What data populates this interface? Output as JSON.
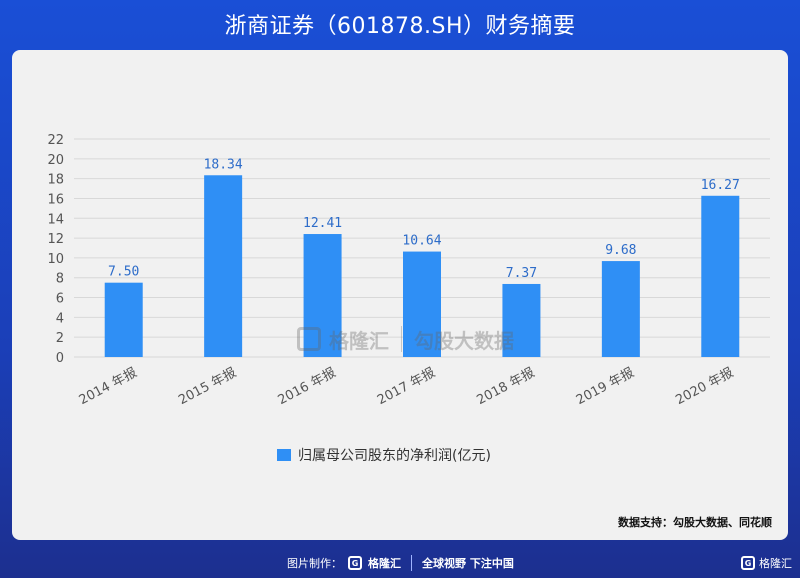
{
  "title": "浙商证券（601878.SH）财务摘要",
  "chart_data": {
    "type": "bar",
    "categories": [
      "2014 年报",
      "2015 年报",
      "2016 年报",
      "2017 年报",
      "2018 年报",
      "2019 年报",
      "2020 年报"
    ],
    "series": [
      {
        "name": "归属母公司股东的净利润(亿元)",
        "values": [
          7.5,
          18.34,
          12.41,
          10.64,
          7.37,
          9.68,
          16.27
        ]
      }
    ],
    "value_labels": [
      "7.50",
      "18.34",
      "12.41",
      "10.64",
      "7.37",
      "9.68",
      "16.27"
    ],
    "ylim": [
      0,
      22
    ],
    "yticks": [
      "0",
      "2",
      "4",
      "6",
      "8",
      "10",
      "12",
      "14",
      "16",
      "18",
      "20",
      "22"
    ],
    "grid": true,
    "legend_position": "bottom-center",
    "colors": {
      "bar": "#2f8ff5",
      "label": "#2d6cc9",
      "grid": "#d8d8d8",
      "axis_text": "#555555"
    }
  },
  "watermark": {
    "left": "格隆汇",
    "right": "勾股大数据"
  },
  "source": "数据支持：勾股大数据、同花顺",
  "footer": {
    "made_by": "图片制作：",
    "brand": "格隆汇",
    "slogan": "全球视野 下注中国",
    "corner_brand": "格隆汇",
    "logo_glyph": "G"
  }
}
